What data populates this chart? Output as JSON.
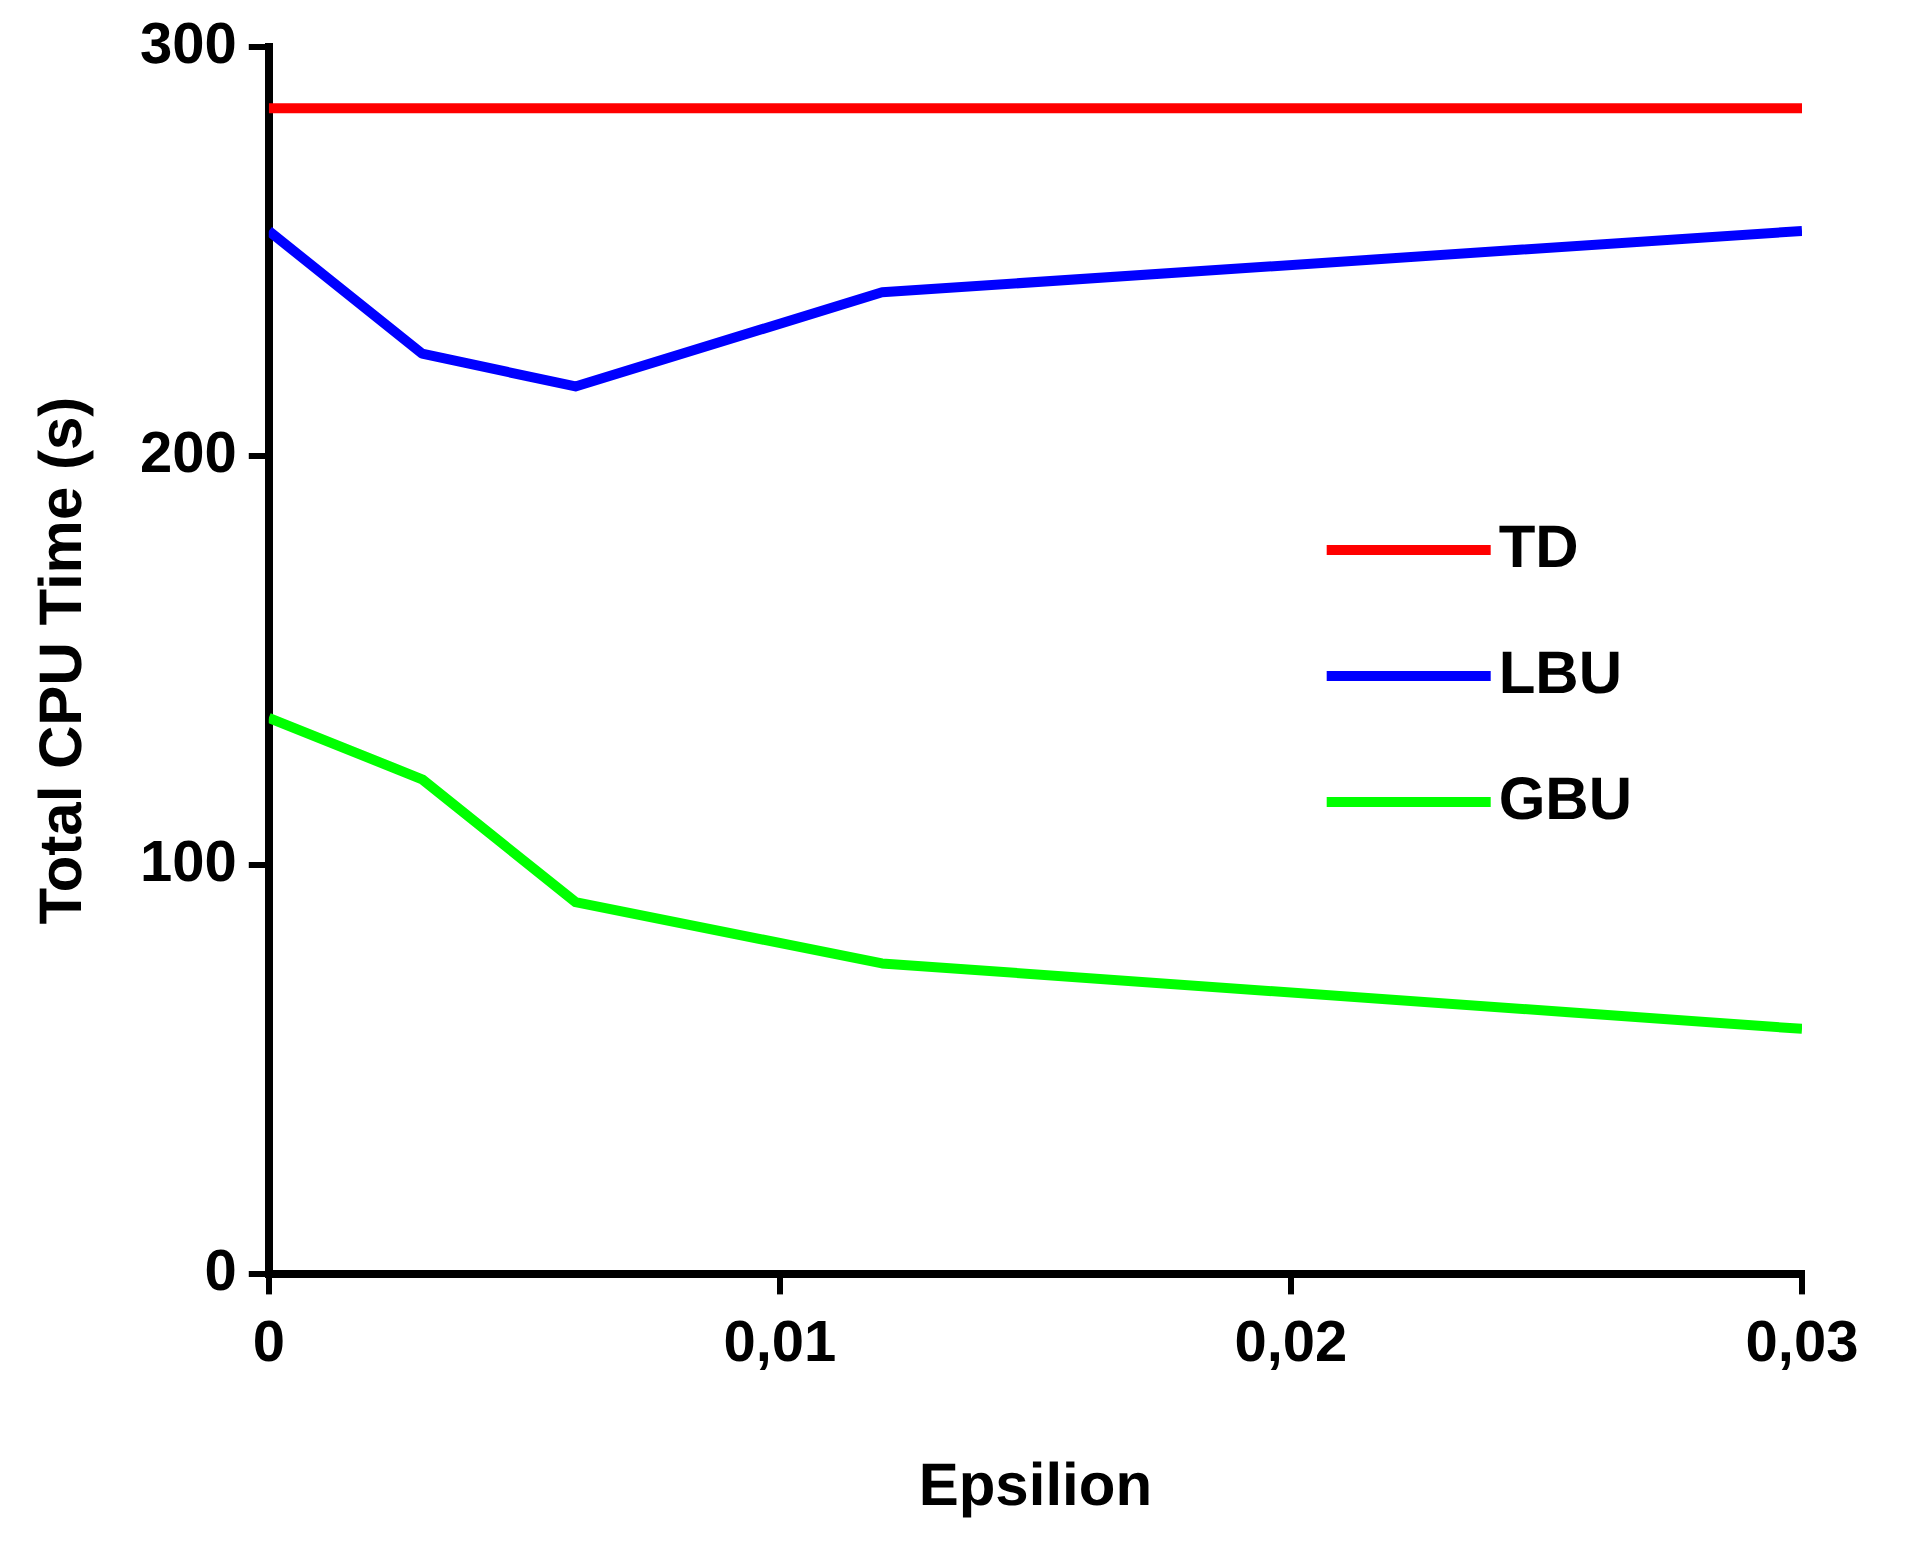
{
  "chart_data": {
    "type": "line",
    "xlabel": "Epsilion",
    "ylabel": "Total CPU Time (s)",
    "x": [
      0,
      0.003,
      0.006,
      0.012,
      0.03
    ],
    "series": [
      {
        "name": "TD",
        "color": "#ff0000",
        "values": [
          285,
          285,
          285,
          285,
          285
        ]
      },
      {
        "name": "LBU",
        "color": "#0000ff",
        "values": [
          255,
          225,
          217,
          240,
          255
        ]
      },
      {
        "name": "GBU",
        "color": "#00ff00",
        "values": [
          136,
          121,
          91,
          76,
          60
        ]
      }
    ],
    "xlim": [
      0,
      0.03
    ],
    "xticks": [
      0,
      {
        "value": 0.01,
        "label": "0,01"
      },
      {
        "value": 0.02,
        "label": "0,02"
      },
      {
        "value": 0.03,
        "label": "0,03"
      }
    ],
    "ylim": [
      0,
      300
    ],
    "yticks": [
      0,
      100,
      200,
      300
    ],
    "grid": false,
    "legend": "right",
    "marker": "none",
    "line_style": "solid"
  }
}
